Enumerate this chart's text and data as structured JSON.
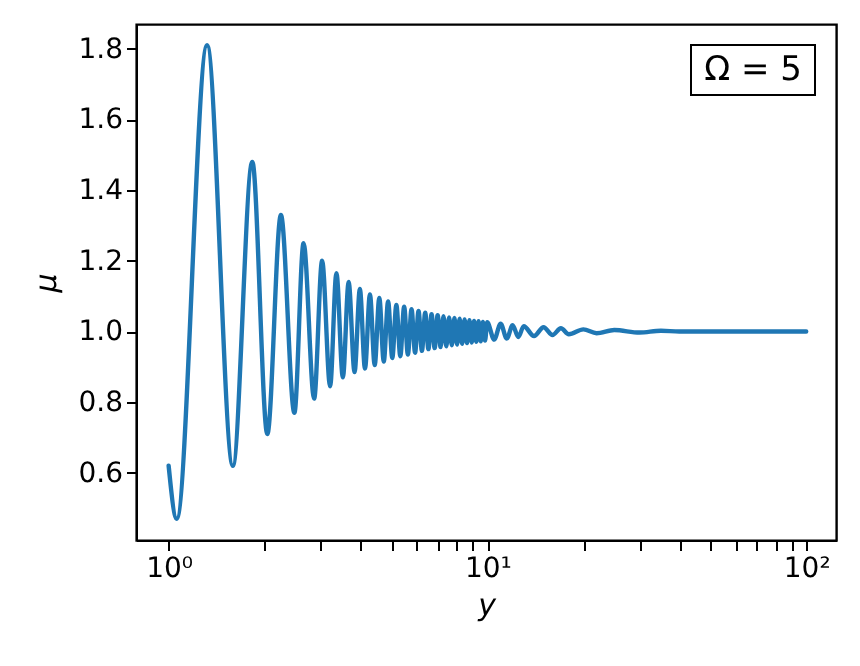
{
  "chart_data": {
    "type": "line",
    "xlabel": "y",
    "ylabel": "μ",
    "annotations": [
      "Ω = 5"
    ],
    "log": "x",
    "grid": false,
    "xlim": [
      0.79,
      124
    ],
    "ylim": [
      0.41,
      1.87
    ],
    "xticks": [
      {
        "value": 1,
        "label": "10⁰"
      },
      {
        "value": 2,
        "label": null
      },
      {
        "value": 3,
        "label": null
      },
      {
        "value": 4,
        "label": null
      },
      {
        "value": 5,
        "label": null
      },
      {
        "value": 6,
        "label": null
      },
      {
        "value": 7,
        "label": null
      },
      {
        "value": 8,
        "label": null
      },
      {
        "value": 9,
        "label": null
      },
      {
        "value": 10,
        "label": "10¹"
      },
      {
        "value": 20,
        "label": null
      },
      {
        "value": 30,
        "label": null
      },
      {
        "value": 40,
        "label": null
      },
      {
        "value": 50,
        "label": null
      },
      {
        "value": 60,
        "label": null
      },
      {
        "value": 70,
        "label": null
      },
      {
        "value": 80,
        "label": null
      },
      {
        "value": 90,
        "label": null
      },
      {
        "value": 100,
        "label": "10²"
      }
    ],
    "yticks": [
      {
        "value": 0.6,
        "label": "0.6"
      },
      {
        "value": 0.8,
        "label": "0.8"
      },
      {
        "value": 1,
        "label": "1.0"
      },
      {
        "value": 1.2,
        "label": "1.2"
      },
      {
        "value": 1.4,
        "label": "1.4"
      },
      {
        "value": 1.6,
        "label": "1.6"
      },
      {
        "value": 1.8,
        "label": "1.8"
      }
    ],
    "series": [
      {
        "color": "#1f77b4",
        "x": [
          1,
          1.06,
          1.32,
          1.59,
          1.83,
          2.04,
          2.25,
          2.48,
          2.65,
          2.86,
          3.03,
          3.21,
          3.36,
          3.52,
          3.67,
          3.83,
          3.98,
          4.13,
          4.28,
          4.43,
          4.58,
          4.73,
          4.88,
          5.03,
          5.18,
          5.33,
          5.48,
          5.63,
          5.78,
          5.93,
          6.08,
          6.23,
          6.38,
          6.53,
          6.68,
          6.83,
          6.98,
          7.13,
          7.28,
          7.43,
          7.58,
          7.73,
          7.88,
          8.03,
          8.18,
          8.33,
          8.48,
          8.63,
          8.78,
          8.93,
          9.08,
          9.23,
          9.38,
          9.53,
          9.68,
          9.83,
          9.98,
          10.5,
          11,
          11.5,
          12,
          12.5,
          13,
          14,
          15,
          16,
          17,
          18,
          20,
          22,
          25,
          30,
          35,
          40,
          100
        ],
        "values": [
          0.62,
          0.47,
          1.81,
          0.62,
          1.48,
          0.71,
          1.33,
          0.77,
          1.25,
          0.81,
          1.2,
          0.845,
          1.165,
          0.87,
          1.14,
          0.885,
          1.12,
          0.895,
          1.105,
          0.905,
          1.095,
          0.915,
          1.085,
          0.925,
          1.075,
          0.93,
          1.07,
          0.935,
          1.063,
          0.94,
          1.058,
          0.945,
          1.053,
          0.95,
          1.049,
          0.953,
          1.046,
          0.956,
          1.043,
          0.958,
          1.04,
          0.961,
          1.038,
          0.963,
          1.036,
          0.965,
          1.034,
          0.967,
          1.032,
          0.969,
          1.03,
          0.971,
          1.029,
          0.972,
          1.027,
          0.974,
          1.026,
          0.977,
          1.022,
          0.98,
          1.018,
          0.984,
          1.015,
          0.987,
          1.012,
          0.99,
          1.009,
          0.992,
          1.006,
          0.995,
          1.004,
          0.997,
          1.002,
          1,
          1
        ]
      }
    ]
  }
}
